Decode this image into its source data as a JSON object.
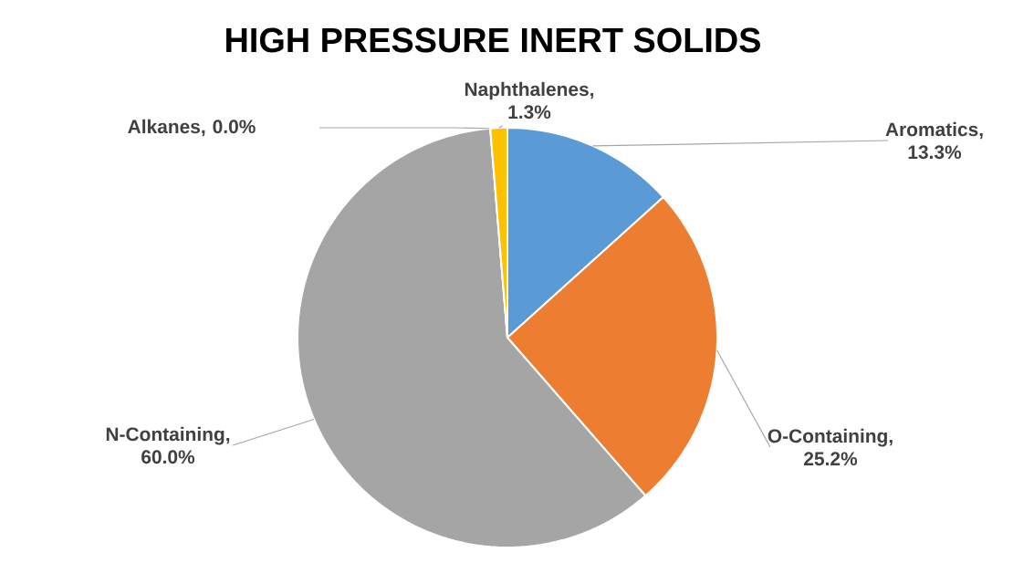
{
  "chart_data": {
    "type": "pie",
    "title": "HIGH PRESSURE INERT SOLIDS",
    "categories": [
      "Aromatics",
      "O-Containing",
      "N-Containing",
      "Alkanes",
      "Naphthalenes"
    ],
    "values": [
      13.3,
      25.2,
      60.0,
      0.0,
      1.3
    ],
    "value_labels": [
      ", 13.3%",
      ", 25.2%",
      ", 60.0%",
      ", 0.0%",
      ", 1.3%"
    ],
    "colors": [
      "#5b9bd5",
      "#ed7d31",
      "#a5a5a5",
      "#4472c4",
      "#ffc000"
    ]
  }
}
